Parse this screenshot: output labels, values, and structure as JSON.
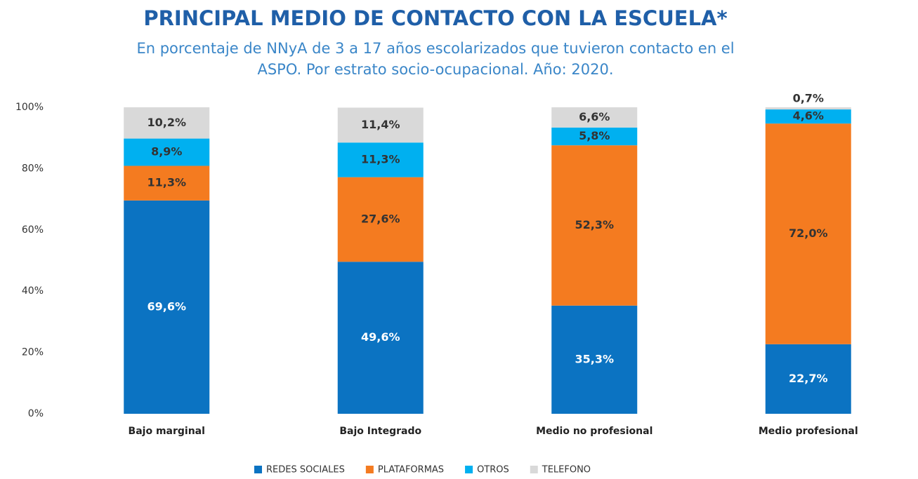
{
  "chart_data": {
    "type": "stacked_bar",
    "title": "PRINCIPAL MEDIO DE CONTACTO CON LA ESCUELA*",
    "subtitle": [
      "En porcentaje de NNyA de 3 a 17 años escolarizados que tuvieron contacto en el",
      "ASPO. Por estrato socio-ocupacional. Año: 2020."
    ],
    "categories": [
      "Bajo marginal",
      "Bajo Integrado",
      "Medio no profesional",
      "Medio profesional"
    ],
    "series": [
      {
        "name": "REDES SOCIALES",
        "color": "#0b73c2",
        "values": [
          69.6,
          49.6,
          35.3,
          22.7
        ],
        "value_labels": [
          "69,6%",
          "49,6%",
          "35,3%",
          "22,7%"
        ]
      },
      {
        "name": "PLATAFORMAS",
        "color": "#f47b20",
        "values": [
          11.3,
          27.6,
          52.3,
          72.0
        ],
        "value_labels": [
          "11,3%",
          "27,6%",
          "52,3%",
          "72,0%"
        ]
      },
      {
        "name": "OTROS",
        "color": "#00b0f0",
        "values": [
          8.9,
          11.3,
          5.8,
          4.6
        ],
        "value_labels": [
          "8,9%",
          "11,3%",
          "5,8%",
          "4,6%"
        ]
      },
      {
        "name": "TELEFONO",
        "color": "#d9d9d9",
        "values": [
          10.2,
          11.4,
          6.6,
          0.7
        ],
        "value_labels": [
          "10,2%",
          "11,4%",
          "6,6%",
          "0,7%"
        ]
      }
    ],
    "ylim": [
      0,
      100
    ],
    "yticks": [
      {
        "value": 0,
        "label": "0%"
      },
      {
        "value": 20,
        "label": "20%"
      },
      {
        "value": 40,
        "label": "40%"
      },
      {
        "value": 60,
        "label": "60%"
      },
      {
        "value": 80,
        "label": "80%"
      },
      {
        "value": 100,
        "label": "100%"
      }
    ],
    "grid": false,
    "legend": "bottom"
  }
}
